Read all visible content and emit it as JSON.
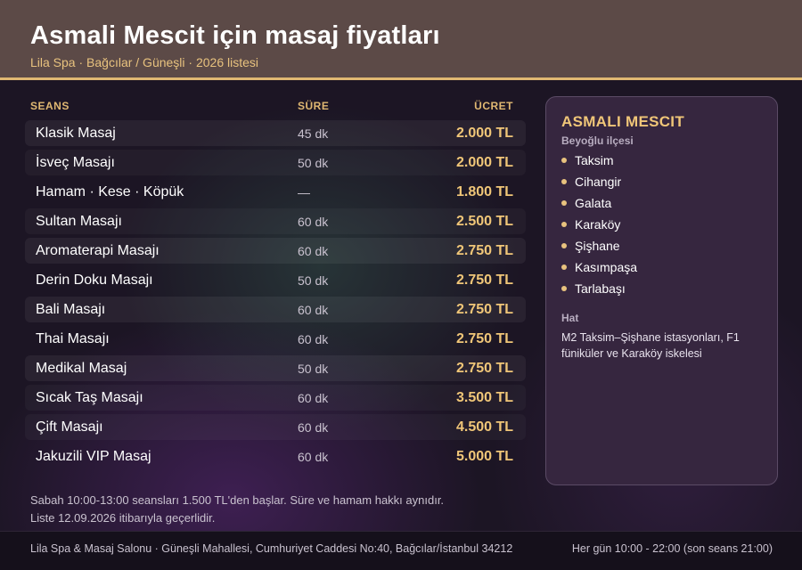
{
  "header": {
    "title": "Asmali Mescit için masaj fiyatları",
    "subtitle": "Lila Spa · Bağcılar / Güneşli · 2026 listesi"
  },
  "table": {
    "columns": {
      "name": "SEANS",
      "duration": "SÜRE",
      "price": "ÜCRET"
    },
    "rows": [
      {
        "name": "Klasik Masaj",
        "duration": "45 dk",
        "price": "2.000 TL"
      },
      {
        "name": "İsveç Masajı",
        "duration": "50 dk",
        "price": "2.000 TL"
      },
      {
        "name": "Hamam · Kese · Köpük",
        "duration": "—",
        "price": "1.800 TL"
      },
      {
        "name": "Sultan Masajı",
        "duration": "60 dk",
        "price": "2.500 TL"
      },
      {
        "name": "Aromaterapi Masajı",
        "duration": "60 dk",
        "price": "2.750 TL"
      },
      {
        "name": "Derin Doku Masajı",
        "duration": "50 dk",
        "price": "2.750 TL"
      },
      {
        "name": "Bali Masajı",
        "duration": "60 dk",
        "price": "2.750 TL"
      },
      {
        "name": "Thai Masajı",
        "duration": "60 dk",
        "price": "2.750 TL"
      },
      {
        "name": "Medikal Masaj",
        "duration": "50 dk",
        "price": "2.750 TL"
      },
      {
        "name": "Sıcak Taş Masajı",
        "duration": "60 dk",
        "price": "3.500 TL"
      },
      {
        "name": "Çift Masajı",
        "duration": "60 dk",
        "price": "4.500 TL"
      },
      {
        "name": "Jakuzili VIP Masaj",
        "duration": "60 dk",
        "price": "5.000 TL"
      }
    ]
  },
  "notes": {
    "line1": "Sabah 10:00-13:00 seansları 1.500 TL'den başlar. Süre ve hamam hakkı aynıdır.",
    "line2": "Liste 12.09.2026 itibarıyla geçerlidir."
  },
  "panel": {
    "title": "ASMALI MESCIT",
    "district": "Beyoğlu ilçesi",
    "neighborhoods": [
      "Taksim",
      "Cihangir",
      "Galata",
      "Karaköy",
      "Şişhane",
      "Kasımpaşa",
      "Tarlabaşı"
    ],
    "transit_label": "Hat",
    "transit_text": "M2 Taksim–Şişhane istasyonları, F1 füniküler ve Karaköy iskelesi"
  },
  "footer": {
    "address": "Lila Spa & Masaj Salonu · Güneşli Mahallesi, Cumhuriyet Caddesi No:40, Bağcılar/İstanbul 34212",
    "hours": "Her gün 10:00 - 22:00 (son seans 21:00)"
  },
  "colors": {
    "accent": "#e0b872",
    "header_bg": "#5c4a47",
    "panel_bg": "#36263f",
    "page_bg": "#1c1524"
  }
}
